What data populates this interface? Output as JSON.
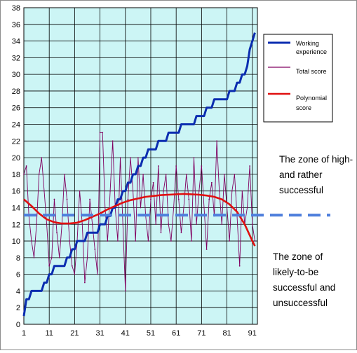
{
  "chart_data": {
    "type": "line",
    "title": "",
    "xlabel": "",
    "ylabel": "",
    "xlim": [
      1,
      93
    ],
    "ylim": [
      0,
      38
    ],
    "x_ticks": [
      "1",
      "11",
      "21",
      "31",
      "41",
      "51",
      "61",
      "71",
      "81",
      "91"
    ],
    "y_ticks": [
      "0",
      "2",
      "4",
      "6",
      "8",
      "10",
      "12",
      "14",
      "16",
      "18",
      "20",
      "22",
      "24",
      "26",
      "28",
      "30",
      "32",
      "34",
      "36",
      "38"
    ],
    "grid": true,
    "plot_background": "#ccf5f5",
    "legend_position": "right",
    "legend": [
      {
        "label": "Working experience",
        "color": "#0b2db0"
      },
      {
        "label": "Total score",
        "color": "#800060"
      },
      {
        "label": "Polynomial score",
        "color": "#e01010"
      }
    ],
    "threshold": {
      "y": 13.1,
      "color": "#4e7fdc",
      "style": "dashed"
    },
    "series": [
      {
        "name": "Working experience",
        "color": "#0b2db0",
        "x": [
          1,
          2,
          3,
          4,
          5,
          6,
          7,
          8,
          9,
          10,
          11,
          12,
          13,
          14,
          15,
          16,
          17,
          18,
          19,
          20,
          21,
          22,
          23,
          24,
          25,
          26,
          27,
          28,
          29,
          30,
          31,
          32,
          33,
          34,
          35,
          36,
          37,
          38,
          39,
          40,
          41,
          42,
          43,
          44,
          45,
          46,
          47,
          48,
          49,
          50,
          51,
          52,
          53,
          54,
          55,
          56,
          57,
          58,
          59,
          60,
          61,
          62,
          63,
          64,
          65,
          66,
          67,
          68,
          69,
          70,
          71,
          72,
          73,
          74,
          75,
          76,
          77,
          78,
          79,
          80,
          81,
          82,
          83,
          84,
          85,
          86,
          87,
          88,
          89,
          90,
          91,
          92
        ],
        "values": [
          1,
          3,
          3,
          4,
          4,
          4,
          4,
          4,
          5,
          5,
          6,
          6,
          7,
          7,
          7,
          7,
          7,
          8,
          8,
          9,
          9,
          10,
          10,
          10,
          10,
          11,
          11,
          11,
          11,
          11,
          12,
          12,
          12,
          13,
          13,
          14,
          14,
          15,
          15,
          16,
          16,
          17,
          17,
          18,
          18,
          19,
          19,
          20,
          20,
          21,
          21,
          21,
          21,
          22,
          22,
          22,
          22,
          23,
          23,
          23,
          23,
          23,
          24,
          24,
          24,
          24,
          24,
          24,
          25,
          25,
          25,
          25,
          26,
          26,
          26,
          27,
          27,
          27,
          27,
          27,
          27,
          28,
          28,
          28,
          29,
          29,
          30,
          30,
          31,
          33,
          34,
          35
        ]
      },
      {
        "name": "Total score",
        "color": "#800060",
        "x": [
          1,
          2,
          3,
          4,
          5,
          6,
          7,
          8,
          9,
          10,
          11,
          12,
          13,
          14,
          15,
          16,
          17,
          18,
          19,
          20,
          21,
          22,
          23,
          24,
          25,
          26,
          27,
          28,
          29,
          30,
          31,
          32,
          33,
          34,
          35,
          36,
          37,
          38,
          39,
          40,
          41,
          42,
          43,
          44,
          45,
          46,
          47,
          48,
          49,
          50,
          51,
          52,
          53,
          54,
          55,
          56,
          57,
          58,
          59,
          60,
          61,
          62,
          63,
          64,
          65,
          66,
          67,
          68,
          69,
          70,
          71,
          72,
          73,
          74,
          75,
          76,
          77,
          78,
          79,
          80,
          81,
          82,
          83,
          84,
          85,
          86,
          87,
          88,
          89,
          90,
          91,
          92
        ],
        "values": [
          18,
          19,
          13,
          10,
          8,
          12,
          18,
          20,
          16,
          12,
          7,
          8,
          15,
          11,
          8,
          12,
          18,
          15,
          10,
          7,
          6,
          10,
          16,
          12,
          5,
          8,
          15,
          12,
          9,
          6,
          23,
          23,
          14,
          10,
          16,
          22,
          14,
          10,
          20,
          12,
          4,
          15,
          20,
          16,
          10,
          20,
          14,
          18,
          13,
          10,
          15,
          17,
          12,
          19,
          11,
          16,
          18,
          12,
          10,
          14,
          19,
          15,
          11,
          14,
          18,
          15,
          10,
          20,
          12,
          16,
          19,
          14,
          9,
          15,
          17,
          13,
          22,
          16,
          12,
          18,
          14,
          10,
          16,
          18,
          13,
          7,
          16,
          12,
          14,
          19,
          12,
          10
        ]
      },
      {
        "name": "Polynomial score",
        "color": "#e01010",
        "x": [
          1,
          4,
          7,
          10,
          13,
          16,
          19,
          22,
          25,
          28,
          31,
          34,
          37,
          40,
          43,
          46,
          49,
          52,
          55,
          58,
          61,
          64,
          67,
          70,
          73,
          76,
          79,
          82,
          85,
          88,
          91,
          92
        ],
        "values": [
          15.0,
          14.2,
          13.3,
          12.6,
          12.25,
          12.1,
          12.1,
          12.2,
          12.5,
          12.9,
          13.3,
          13.8,
          14.2,
          14.6,
          14.9,
          15.1,
          15.3,
          15.4,
          15.5,
          15.55,
          15.6,
          15.65,
          15.6,
          15.55,
          15.45,
          15.3,
          15.0,
          14.4,
          13.5,
          12.0,
          10.0,
          9.4
        ]
      }
    ],
    "annotations": [
      {
        "text": [
          "The zone of high-",
          "and rather",
          "successful"
        ]
      },
      {
        "text": [
          "The zone of",
          "likely-to-be",
          "successful and",
          "unsuccessful"
        ]
      }
    ]
  }
}
